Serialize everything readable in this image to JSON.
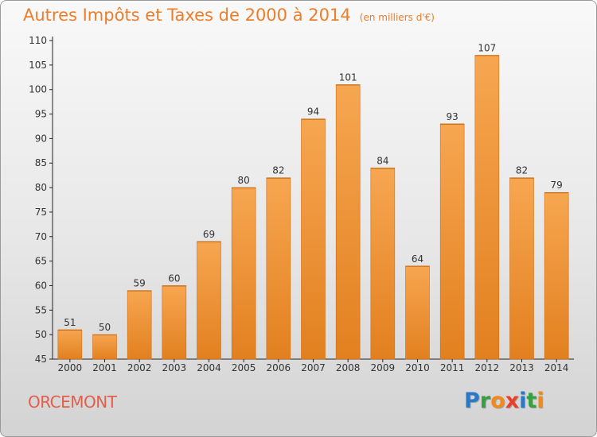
{
  "header": {
    "title": "Autres Impôts et Taxes de 2000 à 2014",
    "subtitle": "(en milliers d'€)"
  },
  "footer": {
    "commune": "ORCEMONT",
    "logo_letters": [
      {
        "char": "P",
        "color": "#2a79c9"
      },
      {
        "char": "r",
        "color": "#36a043"
      },
      {
        "char": "o",
        "color": "#f08a1d"
      },
      {
        "char": "x",
        "color": "#e8412b"
      },
      {
        "char": "i",
        "color": "#2a79c9"
      },
      {
        "char": "t",
        "color": "#36a043"
      },
      {
        "char": "i",
        "color": "#f08a1d"
      }
    ]
  },
  "chart_data": {
    "type": "bar",
    "title": "Autres Impôts et Taxes de 2000 à 2014",
    "subtitle": "(en milliers d'€)",
    "categories": [
      "2000",
      "2001",
      "2002",
      "2003",
      "2004",
      "2005",
      "2006",
      "2007",
      "2008",
      "2009",
      "2010",
      "2011",
      "2012",
      "2013",
      "2014"
    ],
    "values": [
      51,
      50,
      59,
      60,
      69,
      80,
      82,
      94,
      101,
      84,
      64,
      93,
      107,
      82,
      79
    ],
    "xlabel": "",
    "ylabel": "",
    "ylim": [
      45,
      110
    ],
    "yticks": [
      45,
      50,
      55,
      60,
      65,
      70,
      75,
      80,
      85,
      90,
      95,
      100,
      105,
      110
    ],
    "grid": false,
    "data_labels": true,
    "colors": {
      "bar_light": "#f7a651",
      "bar_dark": "#e2801f",
      "bar_edge": "#d06e14",
      "axis": "#222222",
      "text": "#333333"
    }
  }
}
